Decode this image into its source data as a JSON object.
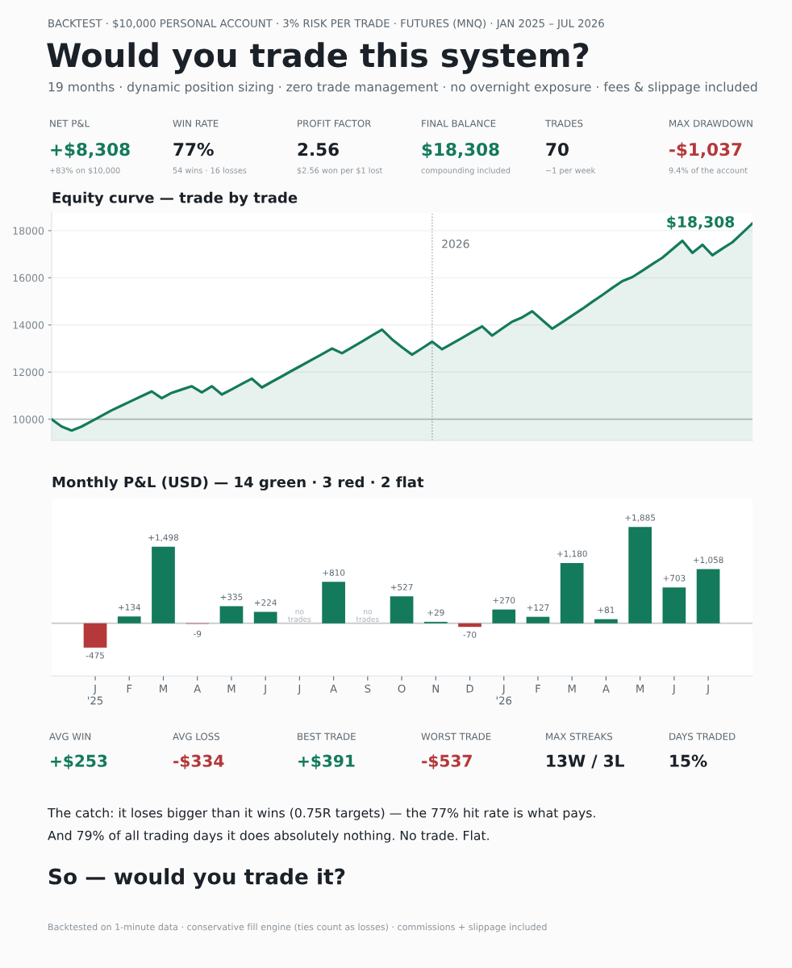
{
  "chart_data": [
    {
      "type": "other",
      "title": "Would you trade this system?",
      "subtitle": "19 months · dynamic position sizing · zero trade management · no overnight exposure · fees & slippage included",
      "annotations": [
        "BACKTEST · $10,000 PERSONAL ACCOUNT · 3% RISK PER TRADE · FUTURES (MNQ) · JAN 2025 – JUL 2026",
        "NET P&L",
        "+$8,308",
        "+83% on $10,000",
        "WIN RATE",
        "77%",
        "54 wins · 16 losses",
        "PROFIT FACTOR",
        "2.56",
        "$2.56 won per $1 lost",
        "FINAL BALANCE",
        "$18,308",
        "compounding included",
        "TRADES",
        "70",
        "~1 per week",
        "MAX DRAWDOWN",
        "-$1,037",
        "9.4% of the account"
      ],
      "colors": [
        "#5a6670",
        "#5a6670",
        "#147a5c",
        "#8a949c",
        "#5a6670",
        "#1b2128",
        "#8a949c",
        "#5a6670",
        "#1b2128",
        "#8a949c",
        "#5a6670",
        "#147a5c",
        "#8a949c",
        "#5a6670",
        "#1b2128",
        "#8a949c",
        "#5a6670",
        "#b5383a",
        "#8a949c"
      ]
    },
    {
      "type": "area",
      "title": "Equity curve — trade by trade",
      "categories": [
        null,
        null,
        null,
        null,
        null,
        null,
        null,
        null,
        null,
        null,
        null,
        null,
        null,
        null,
        null,
        null,
        null,
        null,
        null,
        null,
        null,
        null,
        null,
        null,
        null,
        null,
        null,
        null,
        null,
        null,
        null,
        null,
        null,
        null,
        null,
        null,
        null,
        null,
        null,
        null,
        null,
        null,
        null,
        null,
        null,
        null,
        null,
        null,
        null,
        null,
        null,
        null,
        null,
        null,
        null,
        null,
        null,
        null,
        null,
        null,
        null,
        null,
        null,
        null,
        null,
        null,
        null,
        null,
        null,
        null,
        null
      ],
      "series": [
        {
          "color": "#147a5c",
          "values": [
            10000,
            9690,
            9520,
            9690,
            9920,
            10150,
            10380,
            10580,
            10780,
            10980,
            11180,
            10890,
            11120,
            11260,
            11400,
            11140,
            11400,
            11050,
            11270,
            11500,
            11720,
            11350,
            11590,
            11820,
            12060,
            12290,
            12530,
            12760,
            13000,
            12800,
            13050,
            13300,
            13550,
            13800,
            13390,
            13050,
            12740,
            13010,
            13290,
            12970,
            13210,
            13450,
            13700,
            13940,
            13550,
            13850,
            14140,
            14320,
            14580,
            14210,
            13840,
            14120,
            14400,
            14680,
            14980,
            15270,
            15570,
            15860,
            16030,
            16300,
            16580,
            16850,
            17210,
            17570,
            17060,
            17400,
            16960,
            17240,
            17510,
            17910,
            18308
          ]
        }
      ],
      "ylim": [
        9100,
        18750
      ],
      "yticks": [
        10000,
        12000,
        14000,
        16000,
        18000
      ],
      "grid": "y",
      "tick_labels": "y",
      "ref_lines": [
        {
          "axis": "y",
          "value": 10000,
          "color": "#b8c2c0",
          "line_style": "solid"
        }
      ],
      "annotations": [
        "$18,308",
        "2026"
      ]
    },
    {
      "type": "bar",
      "title": "Monthly P&L (USD) — 14 green · 3 red · 2 flat",
      "categories": [
        "J\n'25",
        "F",
        "M",
        "A",
        "M",
        "J",
        "J",
        "A",
        "S",
        "O",
        "N",
        "D",
        "J\n'26",
        "F",
        "M",
        "A",
        "M",
        "J",
        "J"
      ],
      "values": [
        -475,
        134,
        1498,
        -9,
        335,
        224,
        null,
        810,
        null,
        527,
        29,
        -70,
        270,
        127,
        1180,
        81,
        1885,
        703,
        1058
      ],
      "value_labels": [
        "-475",
        "+134",
        "+1,498",
        "-9",
        "+335",
        "+224",
        "no\ntrades",
        "+810",
        "no\ntrades",
        "+527",
        "+29",
        "-70",
        "+270",
        "+127",
        "+1,180",
        "+81",
        "+1,885",
        "+703",
        "+1,058"
      ],
      "colors": [
        "#b5383a",
        "#147a5c",
        "#147a5c",
        "#b5383a",
        "#147a5c",
        "#147a5c",
        "#147a5c",
        "#147a5c",
        "#147a5c",
        "#147a5c",
        "#147a5c",
        "#b5383a",
        "#147a5c",
        "#147a5c",
        "#147a5c",
        "#147a5c",
        "#147a5c",
        "#147a5c",
        "#147a5c"
      ],
      "tick_labels": "x",
      "grid": false,
      "ref_lines": [
        {
          "axis": "y",
          "value": 0,
          "color": "#c4c9cc",
          "line_style": "solid"
        }
      ]
    },
    {
      "type": "other",
      "annotations": [
        "AVG WIN",
        "+$253",
        "AVG LOSS",
        "-$334",
        "BEST TRADE",
        "+$391",
        "WORST TRADE",
        "-$537",
        "MAX STREAKS",
        "13W / 3L",
        "DAYS TRADED",
        "15%",
        "The catch: it loses bigger than it wins (0.75R targets) — the 77% hit rate is what pays.",
        "And 79% of all trading days it does absolutely nothing. No trade. Flat.",
        "So — would you trade it?",
        "Backtested on 1-minute data · conservative fill engine (ties count as losses) · commissions + slippage included"
      ],
      "colors": [
        "#5a6670",
        "#147a5c",
        "#5a6670",
        "#b5383a",
        "#5a6670",
        "#147a5c",
        "#5a6670",
        "#b5383a",
        "#5a6670",
        "#1b2128",
        "#5a6670",
        "#1b2128",
        "#1b2128",
        "#1b2128",
        "#1b2128",
        "#8a949c"
      ]
    }
  ]
}
